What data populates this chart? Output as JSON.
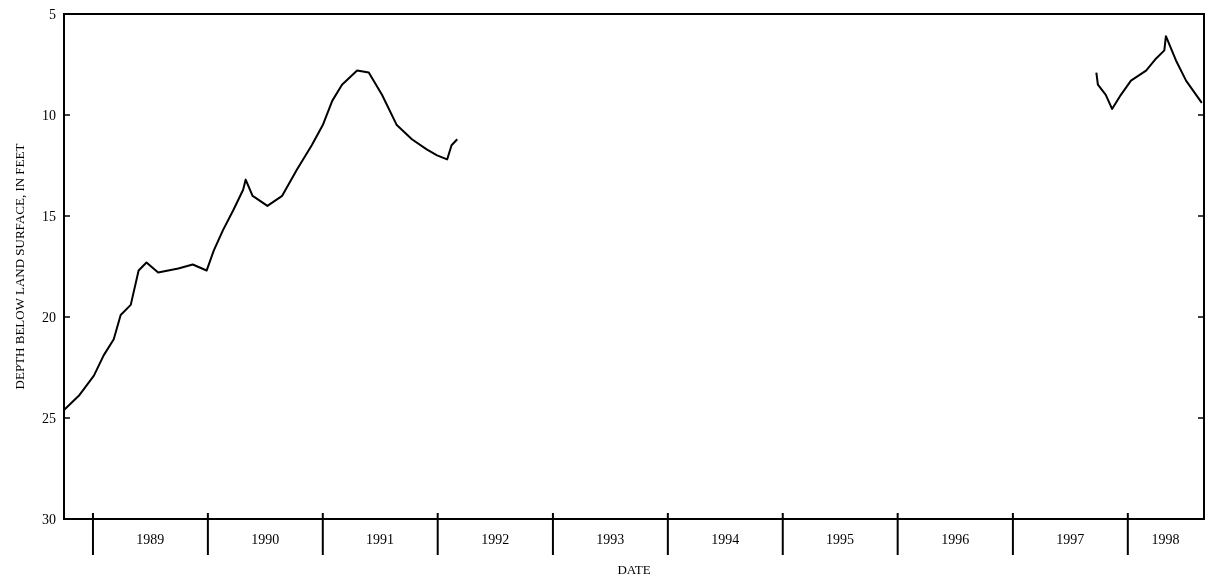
{
  "chart_data": {
    "type": "line",
    "xlabel": "DATE",
    "ylabel": "DEPTH BELOW LAND SURFACE, IN FEET",
    "x": [
      "1988-10-01",
      "1988-11-17",
      "1989-01-04",
      "1989-02-04",
      "1989-03-08",
      "1989-03-30",
      "1989-05-01",
      "1989-05-26",
      "1989-06-20",
      "1989-07-27",
      "1989-09-29",
      "1989-11-14",
      "1989-12-28",
      "1990-01-20",
      "1990-02-18",
      "1990-03-23",
      "1990-04-23",
      "1990-05-01",
      "1990-05-23",
      "1990-07-09",
      "1990-08-25",
      "1990-10-11",
      "1990-11-27",
      "1991-01-01",
      "1991-01-31",
      "1991-03-03",
      "1991-04-20",
      "1991-05-27",
      "1991-07-08",
      "1991-08-24",
      "1991-10-11",
      "1991-11-27",
      "1991-12-30",
      "1992-01-31",
      "1992-02-14",
      "1992-03-03",
      "1995-01-01",
      "1997-09-23",
      "1997-09-28",
      "1997-10-23",
      "1997-11-12",
      "1997-12-10",
      "1998-01-11",
      "1998-02-28",
      "1998-04-01",
      "1998-04-27",
      "1998-05-02",
      "1998-06-03",
      "1998-07-05",
      "1998-08-06",
      "1998-08-24"
    ],
    "series": [
      {
        "color": "#000000",
        "values": [
          24.6,
          23.9,
          22.9,
          21.9,
          21.1,
          19.9,
          19.4,
          17.7,
          17.3,
          17.8,
          17.6,
          17.4,
          17.7,
          16.7,
          15.7,
          14.7,
          13.7,
          13.2,
          14.0,
          14.5,
          14.0,
          12.7,
          11.5,
          10.5,
          9.3,
          8.5,
          7.8,
          7.9,
          9.0,
          10.5,
          11.2,
          11.7,
          12.0,
          12.2,
          11.5,
          11.2,
          null,
          7.9,
          8.5,
          9.0,
          9.7,
          9.0,
          8.3,
          7.8,
          7.2,
          6.8,
          6.1,
          7.3,
          8.3,
          9.0,
          9.4
        ]
      }
    ],
    "xlim": [
      "1988-10-01",
      "1998-08-31"
    ],
    "xticks": [
      {
        "value": "1989-01-01",
        "label": null
      },
      {
        "value": "1989-07-02",
        "label": "1989"
      },
      {
        "value": "1990-01-01",
        "label": null
      },
      {
        "value": "1990-07-02",
        "label": "1990"
      },
      {
        "value": "1991-01-01",
        "label": null
      },
      {
        "value": "1991-07-02",
        "label": "1991"
      },
      {
        "value": "1992-01-01",
        "label": null
      },
      {
        "value": "1992-07-02",
        "label": "1992"
      },
      {
        "value": "1993-01-01",
        "label": null
      },
      {
        "value": "1993-07-02",
        "label": "1993"
      },
      {
        "value": "1994-01-01",
        "label": null
      },
      {
        "value": "1994-07-02",
        "label": "1994"
      },
      {
        "value": "1995-01-01",
        "label": null
      },
      {
        "value": "1995-07-02",
        "label": "1995"
      },
      {
        "value": "1996-01-01",
        "label": null
      },
      {
        "value": "1996-07-02",
        "label": "1996"
      },
      {
        "value": "1997-01-01",
        "label": null
      },
      {
        "value": "1997-07-02",
        "label": "1997"
      },
      {
        "value": "1998-01-01",
        "label": null
      },
      {
        "value": "1998-05-01",
        "label": "1998"
      }
    ],
    "ylim": [
      30,
      5
    ],
    "yticks": [
      5,
      10,
      15,
      20,
      25,
      30
    ],
    "grid": false,
    "marker": "none",
    "line_style": "solid"
  }
}
